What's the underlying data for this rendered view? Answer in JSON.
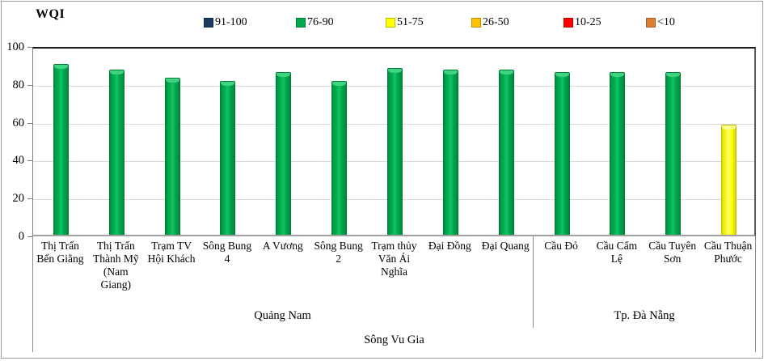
{
  "chart": {
    "title": "WQI"
  },
  "legend": {
    "items": [
      {
        "label": "91-100",
        "color": "#1b3a5f"
      },
      {
        "label": "76-90",
        "color": "#00a84f"
      },
      {
        "label": "51-75",
        "color": "#ffff00"
      },
      {
        "label": "26-50",
        "color": "#ffc000"
      },
      {
        "label": "10-25",
        "color": "#ff0000"
      },
      {
        "label": "<10",
        "color": "#dd7e30"
      }
    ]
  },
  "chart_data": {
    "type": "bar",
    "title": "WQI",
    "categories": [
      "Thị Trấn\nBến Giằng",
      "Thị Trấn\nThành Mỹ\n(Nam\nGiang)",
      "Trạm TV\nHội Khách",
      "Sông Bung\n4",
      "A Vương",
      "Sông Bung\n2",
      "Trạm thủy\nVăn Ái\nNghĩa",
      "Đại Đồng",
      "Đại Quang",
      "Cầu Đỏ",
      "Cầu Cẩm\nLệ",
      "Cầu Tuyên\nSơn",
      "Cầu Thuận\nPhước"
    ],
    "values": [
      90,
      87,
      83,
      81,
      86,
      81,
      88,
      87,
      87,
      86,
      86,
      86,
      58
    ],
    "bar_colors": [
      "#00a84f",
      "#00a84f",
      "#00a84f",
      "#00a84f",
      "#00a84f",
      "#00a84f",
      "#00a84f",
      "#00a84f",
      "#00a84f",
      "#00a84f",
      "#00a84f",
      "#00a84f",
      "#ffff00"
    ],
    "ylim": [
      0,
      100
    ],
    "yticks": [
      0,
      20,
      40,
      60,
      80,
      100
    ],
    "grid": true,
    "legend_position": "top",
    "category_groups": [
      {
        "label": "Quảng Nam",
        "span": 9
      },
      {
        "label": "Tp. Đà Nẵng",
        "span": 4
      }
    ],
    "top_level_label": "Sông Vu Gia"
  }
}
